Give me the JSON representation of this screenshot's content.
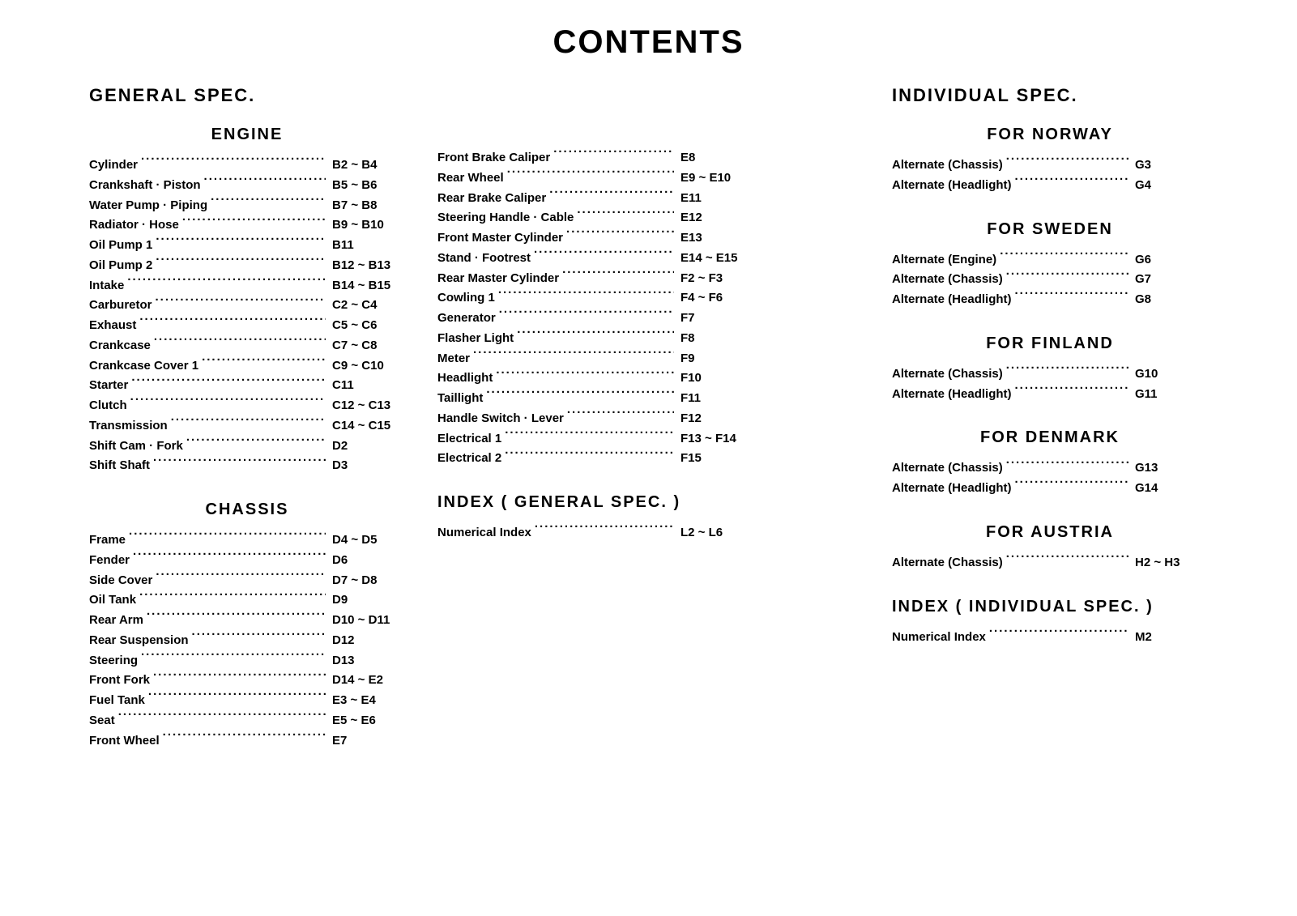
{
  "title": "CONTENTS",
  "col1": {
    "header": "GENERAL  SPEC.",
    "engine": {
      "heading": "ENGINE",
      "items": [
        {
          "label": "Cylinder",
          "page": "B2 ~ B4"
        },
        {
          "label": "Crankshaft · Piston",
          "page": "B5 ~ B6"
        },
        {
          "label": "Water Pump · Piping",
          "page": "B7 ~ B8"
        },
        {
          "label": "Radiator · Hose",
          "page": "B9 ~ B10"
        },
        {
          "label": "Oil Pump  1",
          "page": "B11"
        },
        {
          "label": "Oil Pump  2",
          "page": "B12 ~ B13"
        },
        {
          "label": "Intake",
          "page": "B14 ~ B15"
        },
        {
          "label": "Carburetor",
          "page": "C2 ~ C4"
        },
        {
          "label": "Exhaust",
          "page": "C5 ~ C6"
        },
        {
          "label": "Crankcase",
          "page": "C7 ~ C8"
        },
        {
          "label": "Crankcase Cover  1",
          "page": "C9 ~ C10"
        },
        {
          "label": "Starter",
          "page": "C11"
        },
        {
          "label": "Clutch",
          "page": "C12 ~ C13"
        },
        {
          "label": "Transmission",
          "page": "C14 ~ C15"
        },
        {
          "label": "Shift Cam · Fork",
          "page": "D2"
        },
        {
          "label": "Shift Shaft",
          "page": "D3"
        }
      ]
    },
    "chassis": {
      "heading": "CHASSIS",
      "items": [
        {
          "label": "Frame",
          "page": "D4 ~ D5"
        },
        {
          "label": "Fender",
          "page": "D6"
        },
        {
          "label": "Side Cover",
          "page": "D7 ~ D8"
        },
        {
          "label": "Oil Tank",
          "page": "D9"
        },
        {
          "label": "Rear Arm",
          "page": "D10 ~ D11"
        },
        {
          "label": "Rear Suspension",
          "page": "D12"
        },
        {
          "label": "Steering",
          "page": "D13"
        },
        {
          "label": "Front Fork",
          "page": "D14 ~ E2"
        },
        {
          "label": "Fuel Tank",
          "page": "E3 ~ E4"
        },
        {
          "label": "Seat",
          "page": "E5 ~ E6"
        },
        {
          "label": "Front Wheel",
          "page": "E7"
        }
      ]
    }
  },
  "col2": {
    "list1": {
      "items": [
        {
          "label": "Front Brake Caliper",
          "page": "E8"
        },
        {
          "label": "Rear Wheel",
          "page": "E9 ~ E10"
        },
        {
          "label": "Rear Brake Caliper",
          "page": "E11"
        },
        {
          "label": "Steering Handle · Cable",
          "page": "E12"
        },
        {
          "label": "Front Master Cylinder",
          "page": "E13"
        },
        {
          "label": "Stand · Footrest",
          "page": "E14 ~ E15"
        },
        {
          "label": "Rear Master Cylinder",
          "page": "F2 ~ F3"
        },
        {
          "label": "Cowling  1",
          "page": "F4 ~ F6"
        },
        {
          "label": "Generator",
          "page": "F7"
        },
        {
          "label": "Flasher Light",
          "page": "F8"
        },
        {
          "label": "Meter",
          "page": "F9"
        },
        {
          "label": "Headlight",
          "page": "F10"
        },
        {
          "label": "Taillight",
          "page": "F11"
        },
        {
          "label": "Handle Switch · Lever",
          "page": "F12"
        },
        {
          "label": "Electrical  1",
          "page": "F13 ~ F14"
        },
        {
          "label": "Electrical  2",
          "page": "F15"
        }
      ]
    },
    "index": {
      "heading": "INDEX  ( GENERAL   SPEC. )",
      "items": [
        {
          "label": "Numerical Index",
          "page": "L2 ~ L6"
        }
      ]
    }
  },
  "col3": {
    "header": "INDIVIDUAL  SPEC.",
    "norway": {
      "heading": "FOR  NORWAY",
      "items": [
        {
          "label": "Alternate (Chassis)",
          "page": "G3"
        },
        {
          "label": "Alternate (Headlight)",
          "page": "G4"
        }
      ]
    },
    "sweden": {
      "heading": "FOR  SWEDEN",
      "items": [
        {
          "label": "Alternate (Engine)",
          "page": "G6"
        },
        {
          "label": "Alternate (Chassis)",
          "page": "G7"
        },
        {
          "label": "Alternate (Headlight)",
          "page": "G8"
        }
      ]
    },
    "finland": {
      "heading": "FOR  FINLAND",
      "items": [
        {
          "label": "Alternate (Chassis)",
          "page": "G10"
        },
        {
          "label": "Alternate (Headlight)",
          "page": "G11"
        }
      ]
    },
    "denmark": {
      "heading": "FOR  DENMARK",
      "items": [
        {
          "label": "Alternate (Chassis)",
          "page": "G13"
        },
        {
          "label": "Alternate (Headlight)",
          "page": "G14"
        }
      ]
    },
    "austria": {
      "heading": "FOR  AUSTRIA",
      "items": [
        {
          "label": "Alternate (Chassis)",
          "page": "H2 ~ H3"
        }
      ]
    },
    "index": {
      "heading": "INDEX  ( INDIVIDUAL   SPEC. )",
      "items": [
        {
          "label": "Numerical Index",
          "page": "M2"
        }
      ]
    }
  }
}
